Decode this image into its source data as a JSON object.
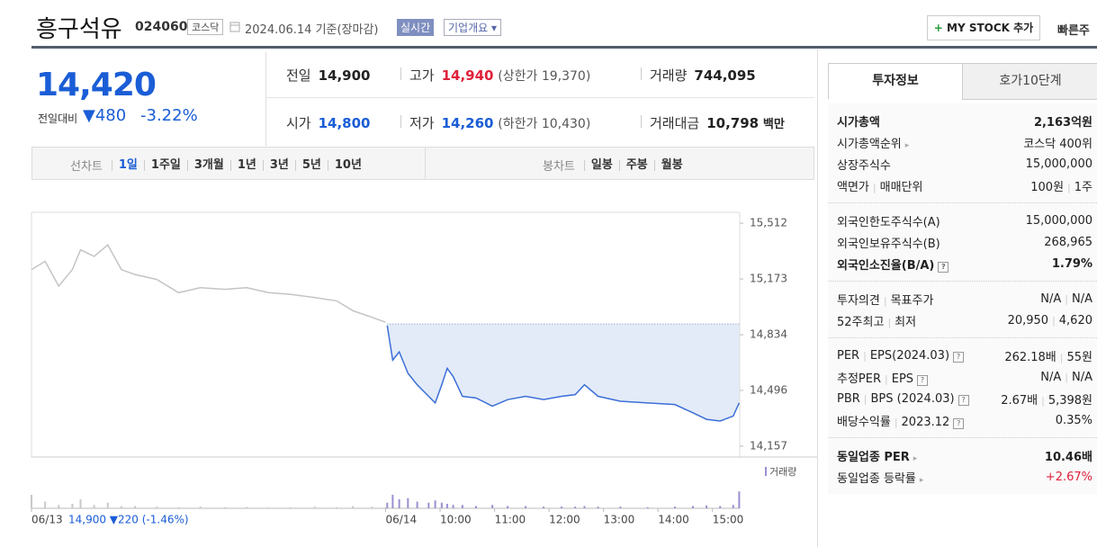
{
  "header": {
    "name": "흥구석유",
    "code": "024060",
    "market": "코스닥",
    "date": "2024.06.14 기준(장마감)",
    "realtime": "실시간",
    "company_info": "기업개요",
    "mystock": "MY STOCK 추가",
    "quick": "빠른주"
  },
  "quote": {
    "price": "14,420",
    "change_label": "전일대비",
    "change": "▼480",
    "change_pct": "-3.22%",
    "cells": [
      {
        "label": "전일",
        "value": "14,900"
      },
      {
        "label": "고가",
        "value": "14,940",
        "note": "(상한가 19,370)"
      },
      {
        "label": "거래량",
        "value": "744,095"
      },
      {
        "label": "시가",
        "value": "14,800"
      },
      {
        "label": "저가",
        "value": "14,260",
        "note": "(하한가 10,430)"
      },
      {
        "label": "거래대금",
        "value": "10,798",
        "unit": "백만"
      }
    ]
  },
  "controls": {
    "line_label": "선차트",
    "periods": [
      "1일",
      "1주일",
      "3개월",
      "1년",
      "3년",
      "5년",
      "10년"
    ],
    "candle_label": "봉차트",
    "candles": [
      "일봉",
      "주봉",
      "월봉"
    ]
  },
  "chart_data": {
    "type": "line",
    "xlim": [
      0,
      13
    ],
    "xticks": [
      {
        "value": 0,
        "label": "06/13"
      },
      {
        "value": 6.5,
        "label": "06/14"
      },
      {
        "value": 7.5,
        "label": "10:00"
      },
      {
        "value": 8.5,
        "label": "11:00"
      },
      {
        "value": 9.5,
        "label": "12:00"
      },
      {
        "value": 10.5,
        "label": "13:00"
      },
      {
        "value": 11.5,
        "label": "14:00"
      },
      {
        "value": 12.5,
        "label": "15:00"
      }
    ],
    "ylim": [
      14091,
      15578
    ],
    "yticks": [
      {
        "value": 14157,
        "label": "14,157"
      },
      {
        "value": 14496,
        "label": "14,496"
      },
      {
        "value": 14834,
        "label": "14,834"
      },
      {
        "value": 15173,
        "label": "15,173"
      },
      {
        "value": 15512,
        "label": "15,512"
      }
    ],
    "y2lim": [
      0,
      40000
    ],
    "volume_label": "거래량",
    "prev_info": "14,900 ▼220 (-1.46%)",
    "series": [
      {
        "color": "#c4c4c4",
        "volume_color": "#c8c8c8",
        "x": [
          0,
          0.25,
          0.5,
          0.75,
          0.9,
          1.15,
          1.4,
          1.65,
          1.9,
          2.3,
          2.7,
          3.1,
          3.55,
          3.95,
          4.35,
          4.75,
          5.2,
          5.6,
          5.9,
          6.25,
          6.5
        ],
        "values": [
          15230,
          15280,
          15130,
          15230,
          15350,
          15310,
          15380,
          15230,
          15200,
          15170,
          15090,
          15120,
          15110,
          15120,
          15090,
          15080,
          15060,
          15040,
          14980,
          14940,
          14910
        ],
        "volume": [
          12000,
          6000,
          3000,
          4000,
          8000,
          3000,
          5000,
          2000,
          2000,
          1500,
          1000,
          1500,
          1000,
          1200,
          800,
          1000,
          1500,
          1000,
          2000,
          1500,
          1000
        ]
      },
      {
        "color": "#3c6fd8",
        "volume_color": "#9a8fd0",
        "fill": "#e3ebf8",
        "reference": 14900,
        "x": [
          6.53,
          6.63,
          6.75,
          6.91,
          7.08,
          7.29,
          7.41,
          7.53,
          7.63,
          7.74,
          7.91,
          8.16,
          8.46,
          8.74,
          9.07,
          9.4,
          9.73,
          9.98,
          10.15,
          10.4,
          10.81,
          11.31,
          11.81,
          12.14,
          12.39,
          12.64,
          12.88,
          12.99
        ],
        "values": [
          14890,
          14680,
          14730,
          14600,
          14530,
          14460,
          14420,
          14530,
          14630,
          14580,
          14460,
          14450,
          14400,
          14440,
          14460,
          14440,
          14460,
          14470,
          14530,
          14460,
          14430,
          14420,
          14410,
          14360,
          14320,
          14310,
          14340,
          14420
        ],
        "volume": [
          5000,
          12000,
          8000,
          9000,
          6000,
          5000,
          7000,
          5000,
          4000,
          3000,
          3000,
          2000,
          3000,
          2000,
          2000,
          1500,
          1500,
          1500,
          2000,
          1500,
          1500,
          1000,
          1500,
          2000,
          2500,
          2000,
          3000,
          15000
        ]
      }
    ]
  },
  "info": {
    "tabs": [
      "투자정보",
      "호가10단계"
    ],
    "groups": [
      [
        {
          "label": [
            "시가총액"
          ],
          "value": [
            "2,163억원"
          ],
          "bold": true
        },
        {
          "label": [
            "시가총액순위"
          ],
          "value": [
            "코스닥 400위"
          ],
          "icon": "arrow"
        },
        {
          "label": [
            "상장주식수"
          ],
          "value": [
            "15,000,000"
          ]
        },
        {
          "label": [
            "액면가",
            "매매단위"
          ],
          "value": [
            "100원",
            "1주"
          ]
        }
      ],
      [
        {
          "label": [
            "외국인한도주식수(A)"
          ],
          "value": [
            "15,000,000"
          ]
        },
        {
          "label": [
            "외국인보유주식수(B)"
          ],
          "value": [
            "268,965"
          ]
        },
        {
          "label": [
            "외국인소진율(B/A)"
          ],
          "value": [
            "1.79%"
          ],
          "bold": true,
          "icon": "help"
        }
      ],
      [
        {
          "label": [
            "투자의견",
            "목표주가"
          ],
          "value": [
            "N/A",
            "N/A"
          ]
        },
        {
          "label": [
            "52주최고",
            "최저"
          ],
          "value": [
            "20,950",
            "4,620"
          ]
        }
      ],
      [
        {
          "label": [
            "PER",
            "EPS(2024.03)"
          ],
          "value": [
            "262.18배",
            "55원"
          ],
          "icon": "help"
        },
        {
          "label": [
            "추정PER",
            "EPS"
          ],
          "value": [
            "N/A",
            "N/A"
          ],
          "icon": "help"
        },
        {
          "label": [
            "PBR",
            "BPS (2024.03)"
          ],
          "value": [
            "2.67배",
            "5,398원"
          ],
          "icon": "help"
        },
        {
          "label": [
            "배당수익률",
            "2023.12"
          ],
          "value": [
            "0.35%"
          ],
          "icon": "help"
        }
      ],
      [
        {
          "label": [
            "동일업종 PER"
          ],
          "value": [
            "10.46배"
          ],
          "bold": true,
          "icon": "arrow"
        },
        {
          "label": [
            "동일업종 등락률"
          ],
          "value": [
            "+2.67%"
          ],
          "color": "#e0203a",
          "icon": "arrow"
        }
      ]
    ]
  }
}
